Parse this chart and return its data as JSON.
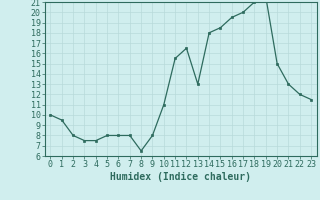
{
  "x": [
    0,
    1,
    2,
    3,
    4,
    5,
    6,
    7,
    8,
    9,
    10,
    11,
    12,
    13,
    14,
    15,
    16,
    17,
    18,
    19,
    20,
    21,
    22,
    23
  ],
  "y": [
    10,
    9.5,
    8,
    7.5,
    7.5,
    8,
    8,
    8,
    6.5,
    8,
    11,
    15.5,
    16.5,
    13,
    18,
    18.5,
    19.5,
    20,
    21,
    21.5,
    15,
    13,
    12,
    11.5
  ],
  "line_color": "#2e6b5e",
  "marker_color": "#2e6b5e",
  "bg_color": "#d0eeee",
  "grid_color": "#b8dada",
  "xlabel": "Humidex (Indice chaleur)",
  "xlabel_fontsize": 7,
  "tick_fontsize": 6,
  "ylim": [
    6,
    21
  ],
  "xlim": [
    -0.5,
    23.5
  ],
  "yticks": [
    6,
    7,
    8,
    9,
    10,
    11,
    12,
    13,
    14,
    15,
    16,
    17,
    18,
    19,
    20,
    21
  ],
  "xticks": [
    0,
    1,
    2,
    3,
    4,
    5,
    6,
    7,
    8,
    9,
    10,
    11,
    12,
    13,
    14,
    15,
    16,
    17,
    18,
    19,
    20,
    21,
    22,
    23
  ]
}
